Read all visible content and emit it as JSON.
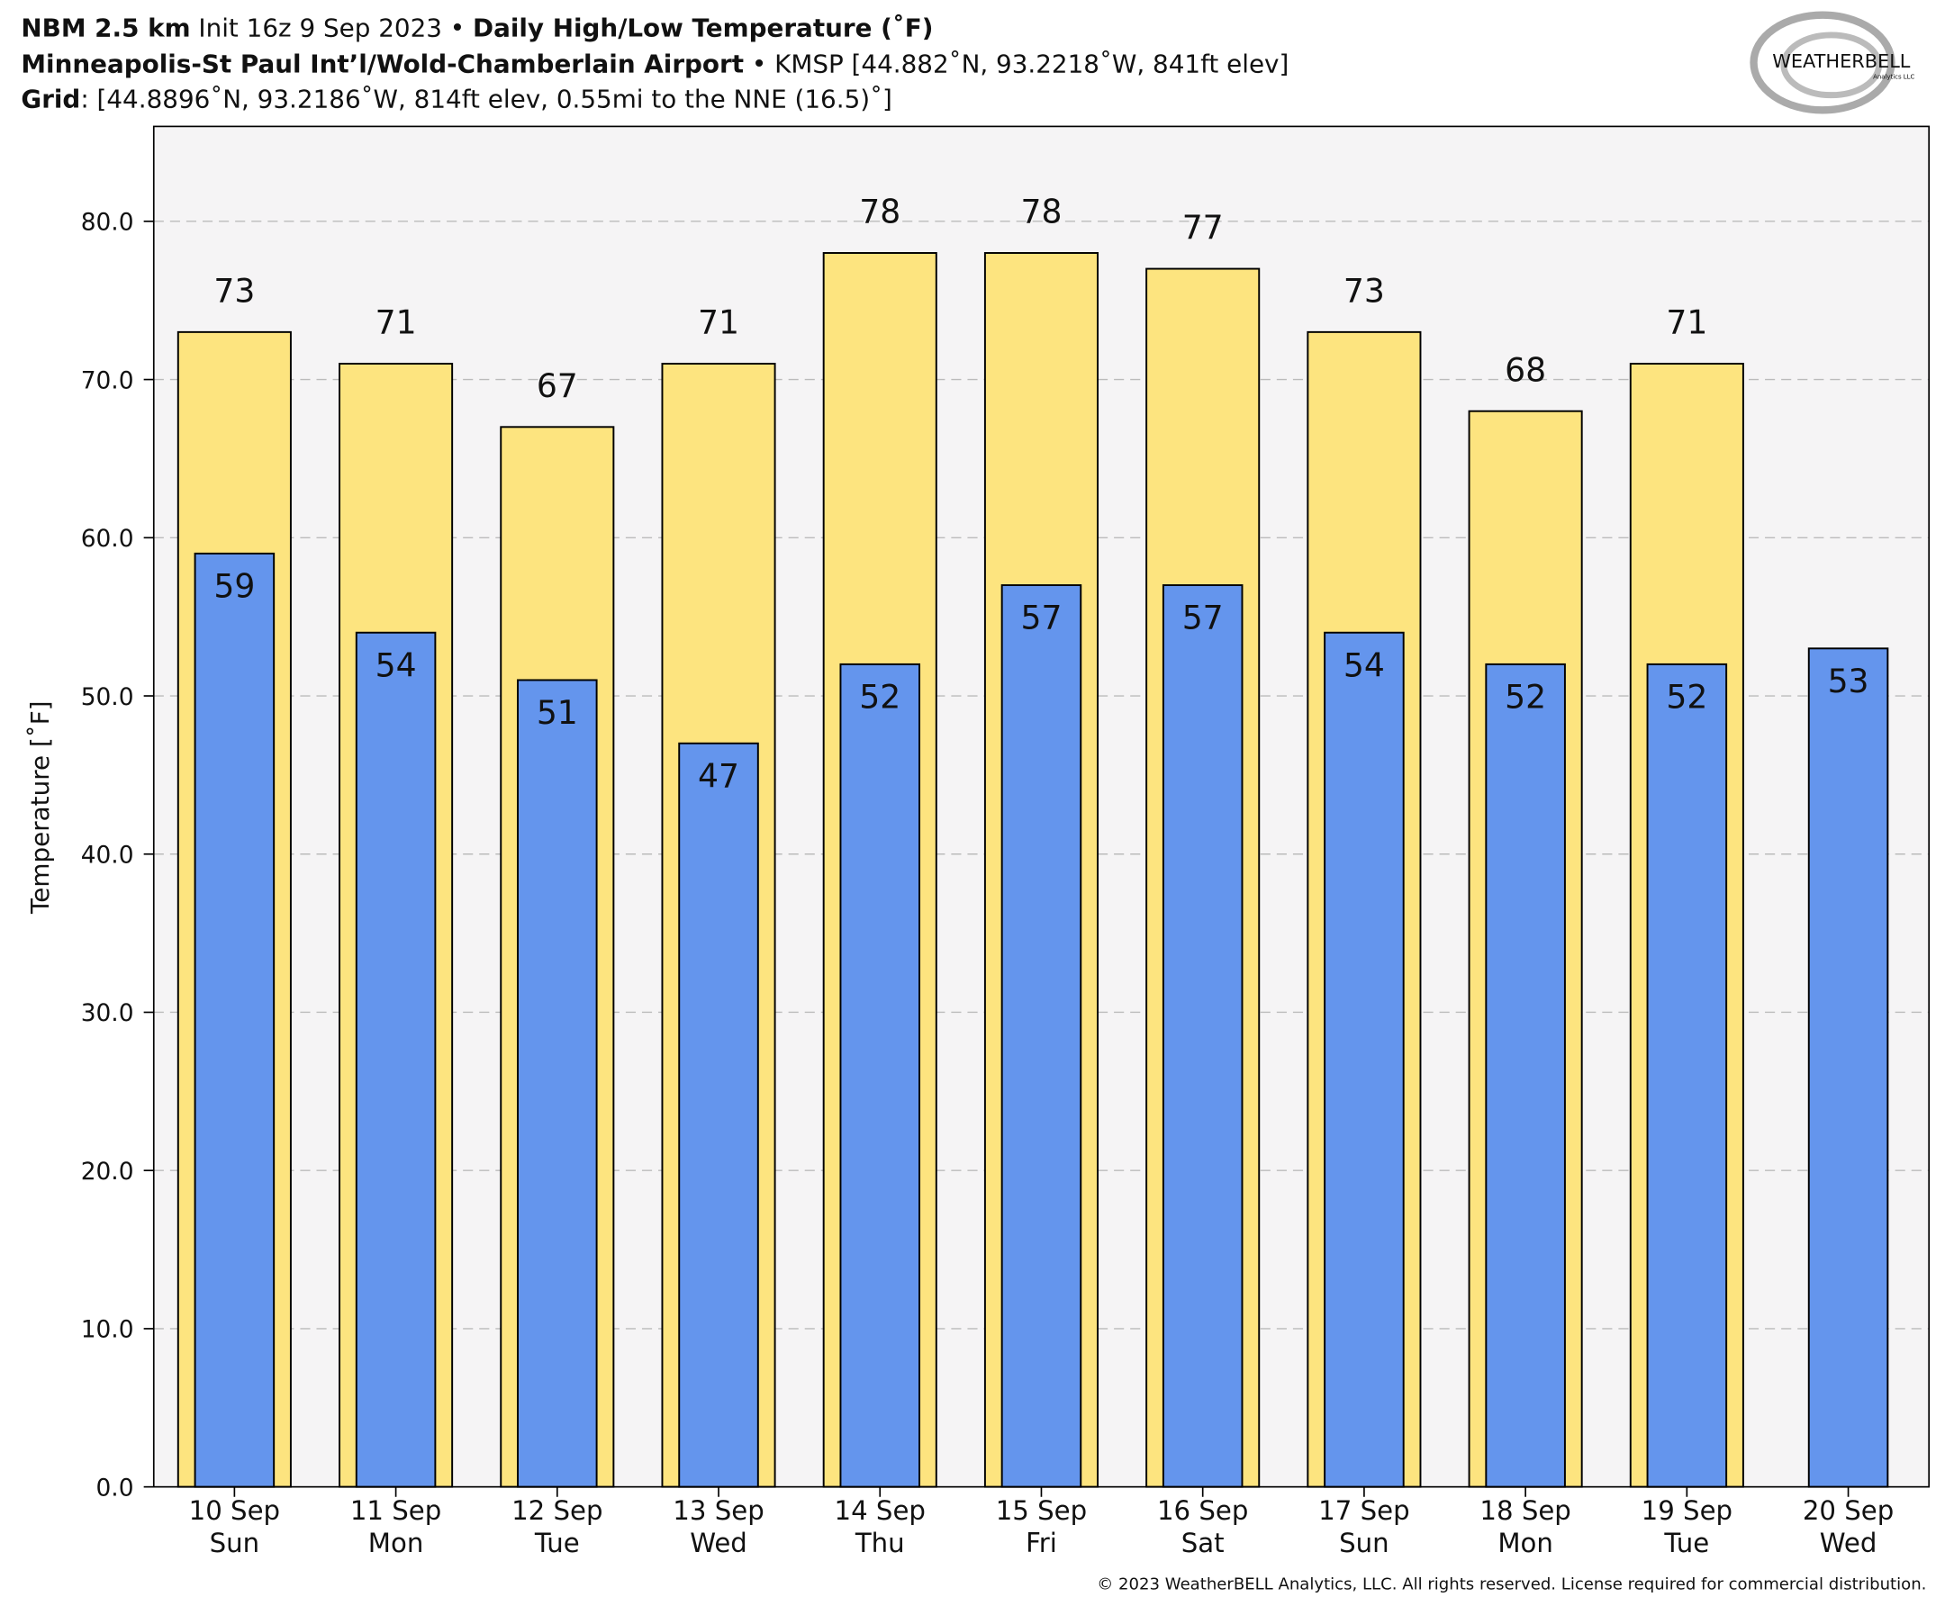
{
  "chart_data": {
    "type": "bar",
    "title": {
      "model": "NBM 2.5 km",
      "init": "Init 16z 9 Sep 2023 •",
      "field": "Daily High/Low Temperature (˚F)",
      "station": "Minneapolis-St Paul Int’l/Wold-Chamberlain Airport",
      "station_info": "• KMSP [44.882˚N, 93.2218˚W, 841ft elev]",
      "grid_label": "Grid",
      "grid_info": ": [44.8896˚N, 93.2186˚W, 814ft elev, 0.55mi to the NNE (16.5)˚]"
    },
    "logo": {
      "name": "WEATHERBELL",
      "sub": "Analytics LLC"
    },
    "copyright": "© 2023 WeatherBELL Analytics, LLC. All rights reserved. License required for commercial distribution.",
    "ylabel": "Temperature [˚F]",
    "categories": [
      "10 Sep",
      "11 Sep",
      "12 Sep",
      "13 Sep",
      "14 Sep",
      "15 Sep",
      "16 Sep",
      "17 Sep",
      "18 Sep",
      "19 Sep",
      "20 Sep"
    ],
    "weekdays": [
      "Sun",
      "Mon",
      "Tue",
      "Wed",
      "Thu",
      "Fri",
      "Sat",
      "Sun",
      "Mon",
      "Tue",
      "Wed"
    ],
    "series": [
      {
        "color": "#fde47f",
        "values": [
          73,
          71,
          67,
          71,
          78,
          78,
          77,
          73,
          68,
          71,
          null
        ]
      },
      {
        "color": "#6495ed",
        "values": [
          59,
          54,
          51,
          47,
          52,
          57,
          57,
          54,
          52,
          52,
          53
        ]
      }
    ],
    "ylim": [
      0,
      86
    ],
    "yticks": [
      {
        "value": 0,
        "label": "0.0"
      },
      {
        "value": 10,
        "label": "10.0"
      },
      {
        "value": 20,
        "label": "20.0"
      },
      {
        "value": 30,
        "label": "30.0"
      },
      {
        "value": 40,
        "label": "40.0"
      },
      {
        "value": 50,
        "label": "50.0"
      },
      {
        "value": 60,
        "label": "60.0"
      },
      {
        "value": 70,
        "label": "70.0"
      },
      {
        "value": 80,
        "label": "80.0"
      }
    ],
    "grid": true
  }
}
